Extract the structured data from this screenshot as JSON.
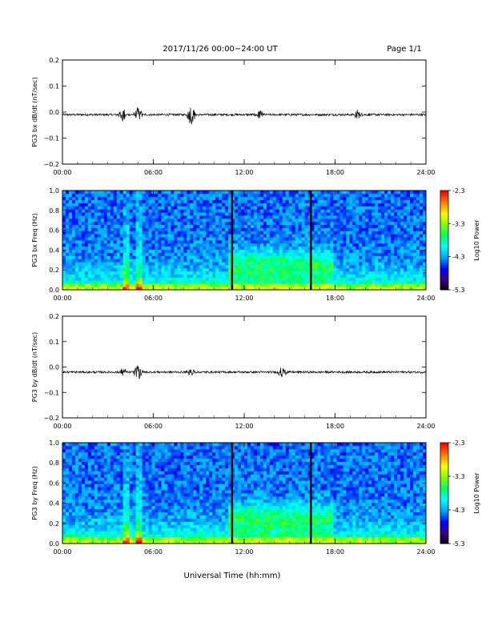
{
  "header": {
    "date_range": "2017/11/26  00:00−24:00 UT",
    "page": "Page 1/1"
  },
  "footer": {
    "xlabel": "Universal Time (hh:mm)"
  },
  "colorbar": {
    "ticks": [
      "-2.3",
      "-3.3",
      "-4.3",
      "-5.3"
    ],
    "label": "Log10 Power",
    "colors": [
      "#000000",
      "#3a0080",
      "#0000ff",
      "#00a0ff",
      "#00ffff",
      "#00ff60",
      "#80ff00",
      "#ffff00",
      "#ff8000",
      "#ff0000"
    ]
  },
  "chart_data": [
    {
      "type": "line",
      "ylabel": "PG3 bx dB/dt (nT/sec)",
      "ylim": [
        -0.2,
        0.2
      ],
      "yticks": [
        "0.2",
        "0.1",
        "0.0",
        "−0.1",
        "−0.2"
      ],
      "xticks": [
        "00:00",
        "06:00",
        "12:00",
        "18:00",
        "24:00"
      ],
      "xlim": [
        0,
        24
      ],
      "baseline": -0.01,
      "noise": 0.004,
      "bursts": [
        {
          "t": 4.0,
          "amp": 0.03
        },
        {
          "t": 5.0,
          "amp": 0.03
        },
        {
          "t": 8.5,
          "amp": 0.045
        },
        {
          "t": 13.0,
          "amp": 0.02
        },
        {
          "t": 19.5,
          "amp": 0.02
        }
      ]
    },
    {
      "type": "heatmap",
      "ylabel": "PG3 bx Freq (Hz)",
      "ylim": [
        0.0,
        1.0
      ],
      "yticks": [
        "1.0",
        "0.8",
        "0.6",
        "0.4",
        "0.2",
        "0.0"
      ],
      "xticks": [
        "00:00",
        "06:00",
        "12:00",
        "18:00",
        "24:00"
      ],
      "xlim": [
        0,
        24
      ],
      "zlim": [
        -5.3,
        -2.3
      ],
      "vlines": [
        11.2,
        16.4
      ]
    },
    {
      "type": "line",
      "ylabel": "PG3 by dB/dt (nT/sec)",
      "ylim": [
        -0.2,
        0.2
      ],
      "yticks": [
        "0.2",
        "0.1",
        "0.0",
        "−0.1",
        "−0.2"
      ],
      "xticks": [
        "00:00",
        "06:00",
        "12:00",
        "18:00",
        "24:00"
      ],
      "xlim": [
        0,
        24
      ],
      "baseline": -0.02,
      "noise": 0.004,
      "bursts": [
        {
          "t": 4.0,
          "amp": 0.02
        },
        {
          "t": 5.0,
          "amp": 0.04
        },
        {
          "t": 8.5,
          "amp": 0.02
        },
        {
          "t": 14.5,
          "amp": 0.025
        }
      ]
    },
    {
      "type": "heatmap",
      "ylabel": "PG3 by Freq (Hz)",
      "ylim": [
        0.0,
        1.0
      ],
      "yticks": [
        "1.0",
        "0.8",
        "0.6",
        "0.4",
        "0.2",
        "0.0"
      ],
      "xticks": [
        "00:00",
        "06:00",
        "12:00",
        "18:00",
        "24:00"
      ],
      "xlim": [
        0,
        24
      ],
      "zlim": [
        -5.3,
        -2.3
      ],
      "vlines": [
        11.2,
        16.4
      ]
    }
  ]
}
